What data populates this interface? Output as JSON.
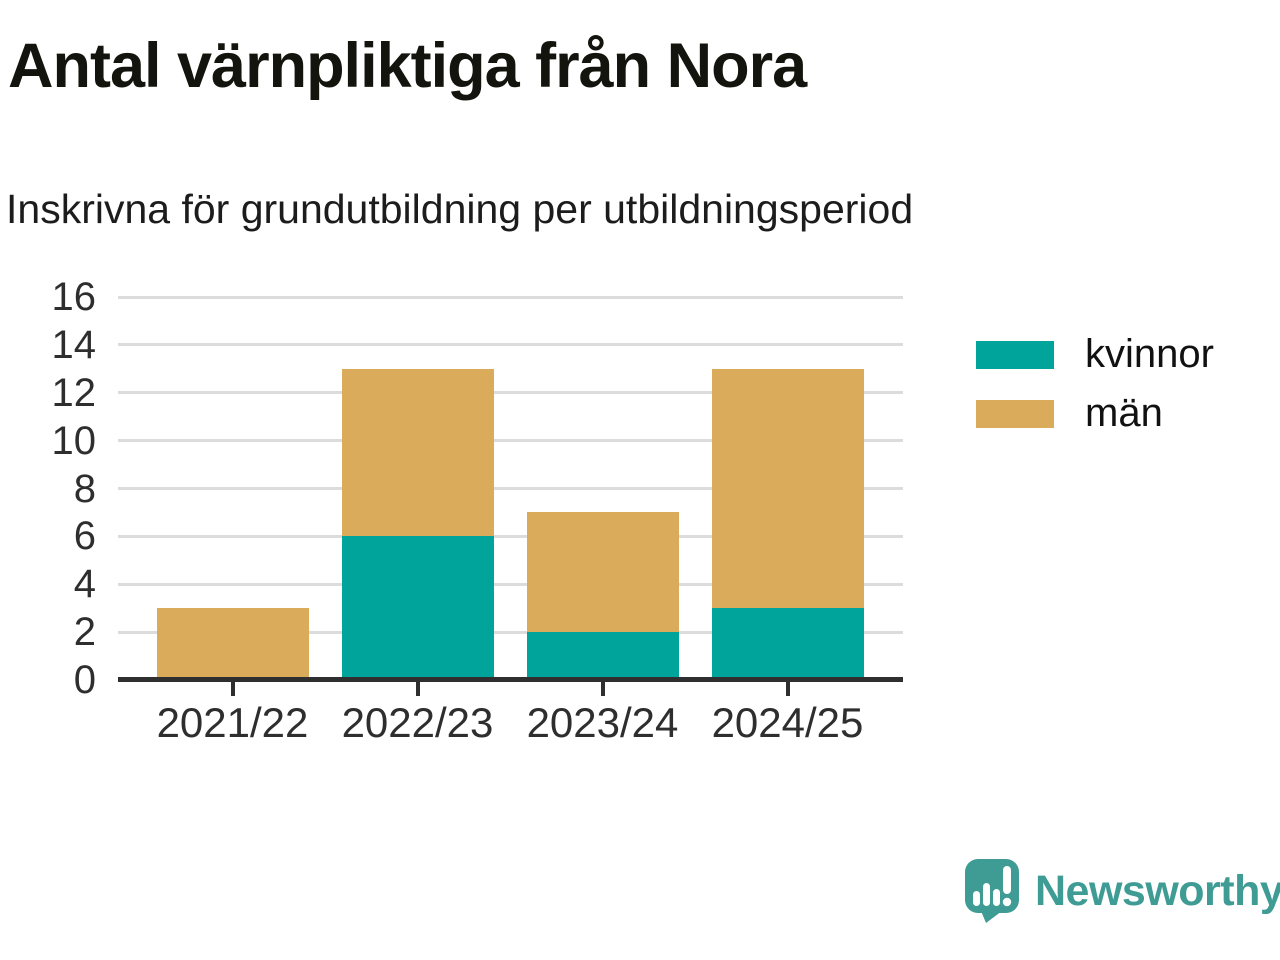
{
  "chart_data": {
    "type": "bar",
    "stacked": true,
    "title": "Antal värnpliktiga från Nora",
    "subtitle": "Inskrivna för grundutbildning per utbildningsperiod",
    "categories": [
      "2021/22",
      "2022/23",
      "2023/24",
      "2024/25"
    ],
    "series": [
      {
        "name": "kvinnor",
        "color": "#00a49a",
        "values": [
          0,
          6,
          2,
          3
        ]
      },
      {
        "name": "män",
        "color": "#d9ab5b",
        "values": [
          3,
          7,
          5,
          10
        ]
      }
    ],
    "ylim": [
      0,
      16
    ],
    "yticks": [
      0,
      2,
      4,
      6,
      8,
      10,
      12,
      14,
      16
    ],
    "grid": true,
    "legend_position": "right",
    "axis_color": "#2f2f2f",
    "gridline_color": "#dcdcdc"
  },
  "branding": {
    "logo_text": "Newsworthy",
    "logo_color": "#3f9c95"
  }
}
